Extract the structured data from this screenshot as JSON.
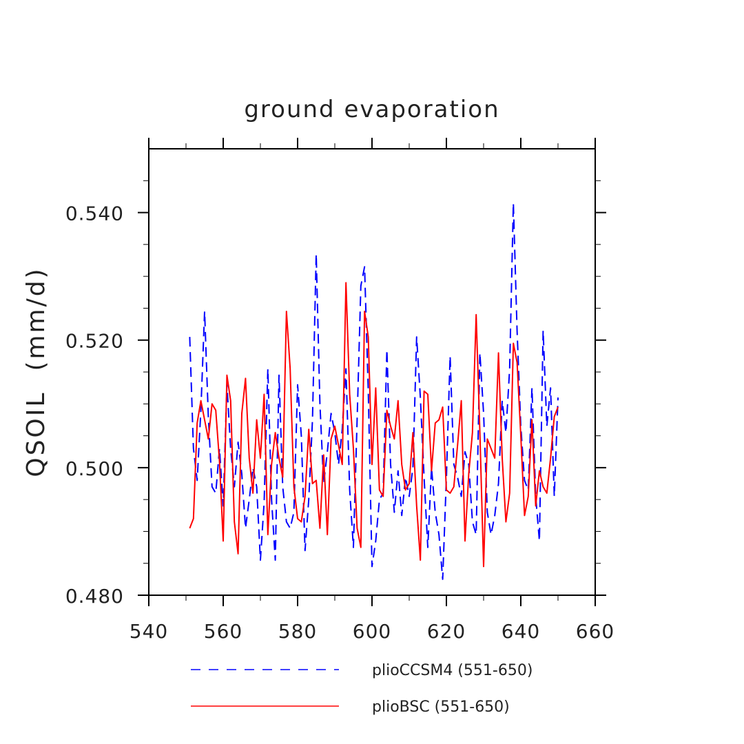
{
  "chart_data": {
    "type": "line",
    "title": "ground evaporation",
    "xlabel": "",
    "ylabel": "QSOIL  (mm/d)",
    "xlim": [
      540,
      660
    ],
    "ylim": [
      0.48,
      0.55
    ],
    "x_ticks": [
      540,
      560,
      580,
      600,
      620,
      640,
      660
    ],
    "x_tick_labels": [
      "540",
      "560",
      "580",
      "600",
      "620",
      "640",
      "660"
    ],
    "y_ticks": [
      0.48,
      0.5,
      0.52,
      0.54
    ],
    "y_tick_labels": [
      "0.480",
      "0.500",
      "0.520",
      "0.540"
    ],
    "x": [
      551,
      552,
      553,
      554,
      555,
      556,
      557,
      558,
      559,
      560,
      561,
      562,
      563,
      564,
      565,
      566,
      567,
      568,
      569,
      570,
      571,
      572,
      573,
      574,
      575,
      576,
      577,
      578,
      579,
      580,
      581,
      582,
      583,
      584,
      585,
      586,
      587,
      588,
      589,
      590,
      591,
      592,
      593,
      594,
      595,
      596,
      597,
      598,
      599,
      600,
      601,
      602,
      603,
      604,
      605,
      606,
      607,
      608,
      609,
      610,
      611,
      612,
      613,
      614,
      615,
      616,
      617,
      618,
      619,
      620,
      621,
      622,
      623,
      624,
      625,
      626,
      627,
      628,
      629,
      630,
      631,
      632,
      633,
      634,
      635,
      636,
      637,
      638,
      639,
      640,
      641,
      642,
      643,
      644,
      645,
      646,
      647,
      648,
      649,
      650
    ],
    "series": [
      {
        "name": "plioCCSM4 (551-650)",
        "color": "#0000ff",
        "dash": "dashed",
        "values": [
          0.5205,
          0.503,
          0.498,
          0.509,
          0.5245,
          0.508,
          0.497,
          0.496,
          0.503,
          0.494,
          0.513,
          0.503,
          0.497,
          0.504,
          0.499,
          0.4905,
          0.495,
          0.5,
          0.497,
          0.4855,
          0.4945,
          0.5155,
          0.495,
          0.4855,
          0.5145,
          0.497,
          0.4915,
          0.4905,
          0.493,
          0.513,
          0.505,
          0.487,
          0.495,
          0.5075,
          0.5335,
          0.51,
          0.4975,
          0.5025,
          0.5085,
          0.5055,
          0.5005,
          0.506,
          0.5155,
          0.4965,
          0.4875,
          0.5075,
          0.5285,
          0.5315,
          0.512,
          0.4845,
          0.4885,
          0.495,
          0.496,
          0.5185,
          0.5005,
          0.493,
          0.4995,
          0.4925,
          0.4985,
          0.4955,
          0.5,
          0.5205,
          0.511,
          0.4985,
          0.4875,
          0.5,
          0.493,
          0.4895,
          0.4825,
          0.4985,
          0.5175,
          0.5005,
          0.4985,
          0.4955,
          0.5025,
          0.5005,
          0.4915,
          0.4895,
          0.518,
          0.5085,
          0.493,
          0.4895,
          0.4925,
          0.4975,
          0.5105,
          0.5055,
          0.5155,
          0.5415,
          0.5215,
          0.5065,
          0.498,
          0.4965,
          0.5125,
          0.4955,
          0.4885,
          0.5215,
          0.5065,
          0.5125,
          0.4955,
          0.511
        ]
      },
      {
        "name": "plioBSC (551-650)",
        "color": "#ff0000",
        "dash": "solid",
        "values": [
          0.4905,
          0.492,
          0.507,
          0.5105,
          0.5075,
          0.5045,
          0.51,
          0.509,
          0.501,
          0.4885,
          0.5145,
          0.5105,
          0.4915,
          0.4865,
          0.5085,
          0.514,
          0.5015,
          0.496,
          0.5075,
          0.5015,
          0.5115,
          0.4895,
          0.5005,
          0.5055,
          0.5015,
          0.4985,
          0.5245,
          0.5155,
          0.497,
          0.492,
          0.4915,
          0.4955,
          0.506,
          0.4975,
          0.498,
          0.4905,
          0.502,
          0.4895,
          0.5045,
          0.5065,
          0.5035,
          0.5005,
          0.529,
          0.5115,
          0.503,
          0.4905,
          0.4875,
          0.5245,
          0.5205,
          0.5005,
          0.5125,
          0.4965,
          0.4955,
          0.509,
          0.5065,
          0.5045,
          0.5105,
          0.5005,
          0.4965,
          0.4975,
          0.5055,
          0.494,
          0.4855,
          0.512,
          0.5115,
          0.4995,
          0.507,
          0.5075,
          0.5095,
          0.4965,
          0.496,
          0.497,
          0.5035,
          0.5105,
          0.4885,
          0.499,
          0.5055,
          0.524,
          0.5055,
          0.4845,
          0.5045,
          0.503,
          0.5015,
          0.518,
          0.5015,
          0.4915,
          0.496,
          0.5195,
          0.5165,
          0.505,
          0.4925,
          0.4955,
          0.5075,
          0.494,
          0.4995,
          0.497,
          0.496,
          0.5015,
          0.508,
          0.5095
        ]
      }
    ],
    "legend_position": "bottom"
  }
}
